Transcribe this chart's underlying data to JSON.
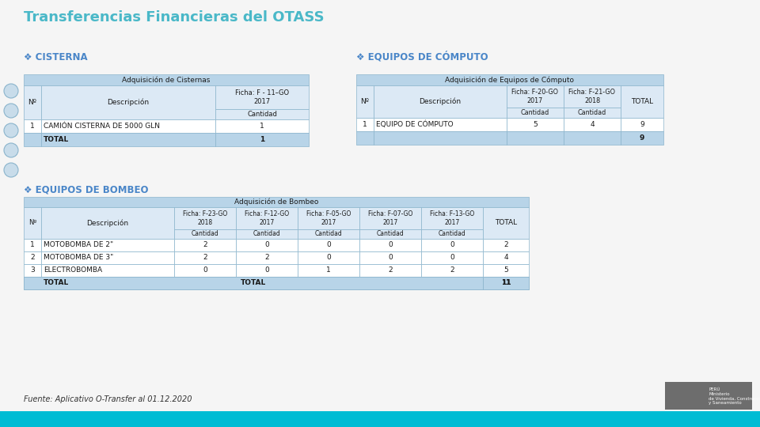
{
  "title": "Transferencias Financieras del OTASS",
  "title_color": "#4ab8c8",
  "bg_color": "#f5f5f5",
  "bottom_bar_color": "#00bcd4",
  "section1_title": "❖ CISTERNA",
  "section2_title": "❖ EQUIPOS DE CÓMPUTO",
  "section3_title": "❖ EQUIPOS DE BOMBEO",
  "section_title_color": "#4a86c8",
  "table_header_bg": "#b8d4e8",
  "table_subheader_bg": "#dce9f5",
  "table_row_bg": "#ffffff",
  "table_border_color": "#8ab4cc",
  "cisterna_title": "Adquisición de Cisternas",
  "computo_title": "Adquisición de Equipos de Cómputo",
  "bombeo_title": "Adquisición de Bombeo",
  "cisterna_data": [
    [
      "1",
      "CAMIÓN CISTERNA DE 5000 GLN",
      "1"
    ],
    [
      "",
      "TOTAL",
      "1"
    ]
  ],
  "computo_data": [
    [
      "1",
      "EQUIPO DE CÓMPUTO",
      "5",
      "4",
      "9"
    ],
    [
      "",
      "",
      "",
      "",
      "9"
    ]
  ],
  "bombeo_data": [
    [
      "1",
      "MOTOBOMBA DE 2\"",
      "2",
      "0",
      "0",
      "0",
      "0",
      "2"
    ],
    [
      "2",
      "MOTOBOMBA DE 3\"",
      "2",
      "2",
      "0",
      "0",
      "0",
      "4"
    ],
    [
      "3",
      "ELECTROBOMBA",
      "0",
      "0",
      "1",
      "2",
      "2",
      "5"
    ],
    [
      "",
      "TOTAL",
      "",
      "",
      "",
      "",
      "",
      "11"
    ]
  ],
  "source_text": "Fuente: Aplicativo O-Transfer al 01.12.2020",
  "source_color": "#333333",
  "icon_color": "#c8dcea",
  "icon_border": "#8ab4cc"
}
